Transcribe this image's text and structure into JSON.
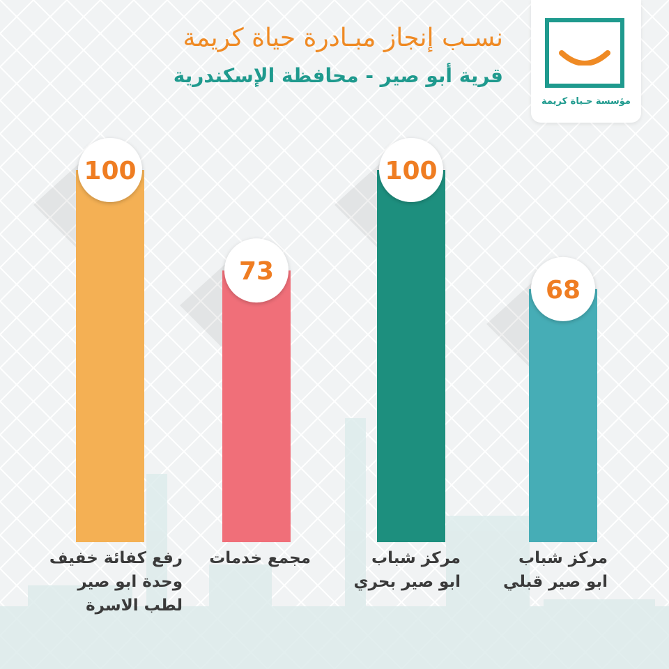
{
  "header": {
    "title": "نسـب إنجاز مبـادرة حياة كريمة",
    "subtitle": "قرية أبو صير -  محافظة الإسكندرية"
  },
  "logo": {
    "text": "مؤسسة حـياة كريمة",
    "icon": "smile-icon",
    "color": "#1f9a8e",
    "smile_color": "#ef8a24"
  },
  "chart_data": {
    "type": "bar",
    "categories": [
      "رفع كفائة خفيف\nوحدة ابو صير\nلطب الاسرة",
      "مجمع خدمات",
      "مركز شباب\nابو صير بحري",
      "مركز شباب\nابو صير قبلي"
    ],
    "values": [
      100,
      73,
      100,
      68
    ],
    "data_labels": [
      "100",
      "73",
      "100",
      "68"
    ],
    "colors": [
      "#f4b054",
      "#f06f79",
      "#1d8f7e",
      "#46adb6"
    ],
    "label_color": "#ef7d22",
    "ylim": [
      0,
      100
    ],
    "grid": false,
    "title": "",
    "xlabel": "",
    "ylabel": ""
  }
}
